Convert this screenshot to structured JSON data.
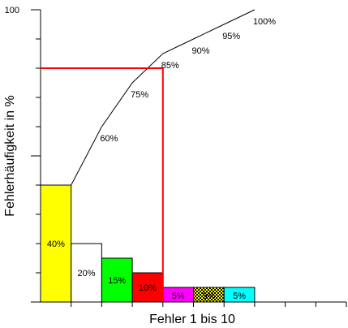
{
  "chart_data": {
    "type": "bar",
    "xlabel": "Fehler 1 bis 10",
    "ylabel": "Fehlerhäufigkeit in %",
    "ylim": [
      0,
      100
    ],
    "y_tick_labels": [
      "100"
    ],
    "grid": false,
    "bar_series": {
      "values": [
        40,
        20,
        15,
        10,
        5,
        5,
        5
      ],
      "labels": [
        "40%",
        "20%",
        "15%",
        "10%",
        "5%",
        "5%",
        "5%"
      ],
      "colors": [
        "#ffff00",
        "#ffffff",
        "#00ff00",
        "#ff0000",
        "#ff00ff",
        "#ffff00",
        "#00ffff"
      ],
      "patterned": [
        false,
        false,
        false,
        false,
        false,
        true,
        false
      ]
    },
    "cumulative_line": {
      "values": [
        40,
        60,
        75,
        85,
        90,
        95,
        100
      ],
      "labels": [
        "",
        "60%",
        "75%",
        "85%",
        "90%",
        "95%",
        "100%"
      ],
      "color": "#000000"
    },
    "highlight_region": {
      "bars_covered": 4,
      "level": 80,
      "color": "#ff0000"
    }
  }
}
